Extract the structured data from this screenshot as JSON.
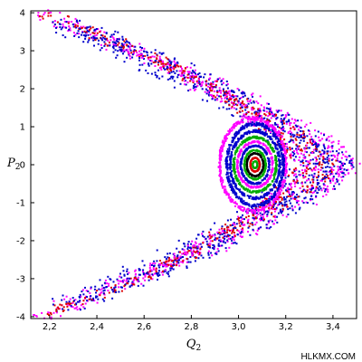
{
  "chart_data": {
    "type": "scatter",
    "title": "",
    "xlabel": "Q",
    "xlabel_sub": "2",
    "ylabel": "P",
    "ylabel_sub": "2",
    "xlim": [
      2.12,
      3.5
    ],
    "ylim": [
      -4.05,
      4.05
    ],
    "xticks": [
      2.2,
      2.4,
      2.6,
      2.8,
      3.0,
      3.2,
      3.4
    ],
    "xtick_labels": [
      "2,2",
      "2,4",
      "2,6",
      "2,8",
      "3,0",
      "3,2",
      "3,4"
    ],
    "yticks": [
      -4,
      -3,
      -2,
      -1,
      0,
      1,
      2,
      3,
      4
    ],
    "ytick_labels": [
      "-4",
      "-3",
      "-2",
      "-1",
      "0",
      "1",
      "2",
      "3",
      "4"
    ],
    "grid": false,
    "legend": "none",
    "watermark": "HLKMX.COM",
    "series": [
      {
        "color": "#ff00ff",
        "kind": "chevron",
        "q0": 2.14,
        "q1": 3.45,
        "p0": 4.0,
        "thickness": 0.07,
        "count": 600
      },
      {
        "color": "#0000cc",
        "kind": "chevron",
        "q0": 2.26,
        "q1": 3.41,
        "p0": 3.78,
        "thickness": 0.08,
        "count": 600
      },
      {
        "color": "#dd0000",
        "kind": "chevron",
        "q0": 2.2,
        "q1": 3.37,
        "p0": 3.95,
        "thickness": 0.05,
        "count": 350
      },
      {
        "color": "#0000cc",
        "kind": "chevron",
        "q0": 2.28,
        "q1": 3.33,
        "p0": 3.6,
        "thickness": 0.09,
        "count": 450
      },
      {
        "color": "#ff00ff",
        "kind": "chevron",
        "q0": 2.52,
        "q1": 3.3,
        "p0": 3.1,
        "thickness": 0.06,
        "count": 300
      },
      {
        "color": "#dd0000",
        "kind": "chevron",
        "q0": 2.62,
        "q1": 3.27,
        "p0": 2.9,
        "thickness": 0.04,
        "count": 160
      },
      {
        "color": "#ff00ff",
        "kind": "island",
        "cq": 3.06,
        "cp": 0.0,
        "rq": 0.14,
        "rp": 1.22,
        "count": 420
      },
      {
        "color": "#0000cc",
        "kind": "island",
        "cq": 3.07,
        "cp": 0.0,
        "rq": 0.12,
        "rp": 1.08,
        "count": 420
      },
      {
        "color": "#0000cc",
        "kind": "island",
        "cq": 3.07,
        "cp": 0.0,
        "rq": 0.105,
        "rp": 0.88,
        "count": 360
      },
      {
        "color": "#00aa00",
        "kind": "island",
        "cq": 3.07,
        "cp": 0.0,
        "rq": 0.09,
        "rp": 0.72,
        "count": 300
      },
      {
        "color": "#ff00ff",
        "kind": "island",
        "cq": 3.07,
        "cp": 0.0,
        "rq": 0.075,
        "rp": 0.6,
        "count": 260
      },
      {
        "color": "#0000cc",
        "kind": "island",
        "cq": 3.07,
        "cp": 0.0,
        "rq": 0.06,
        "rp": 0.5,
        "count": 240
      },
      {
        "color": "#00aa00",
        "kind": "island",
        "cq": 3.07,
        "cp": 0.0,
        "rq": 0.045,
        "rp": 0.38,
        "count": 200
      },
      {
        "color": "#000000",
        "kind": "island",
        "cq": 3.07,
        "cp": 0.0,
        "rq": 0.035,
        "rp": 0.3,
        "count": 200
      },
      {
        "color": "#dd0000",
        "kind": "island",
        "cq": 3.07,
        "cp": 0.0,
        "rq": 0.02,
        "rp": 0.18,
        "count": 150
      },
      {
        "color": "#00aa00",
        "kind": "island",
        "cq": 3.07,
        "cp": 0.0,
        "rq": 0.01,
        "rp": 0.09,
        "count": 80
      }
    ]
  }
}
